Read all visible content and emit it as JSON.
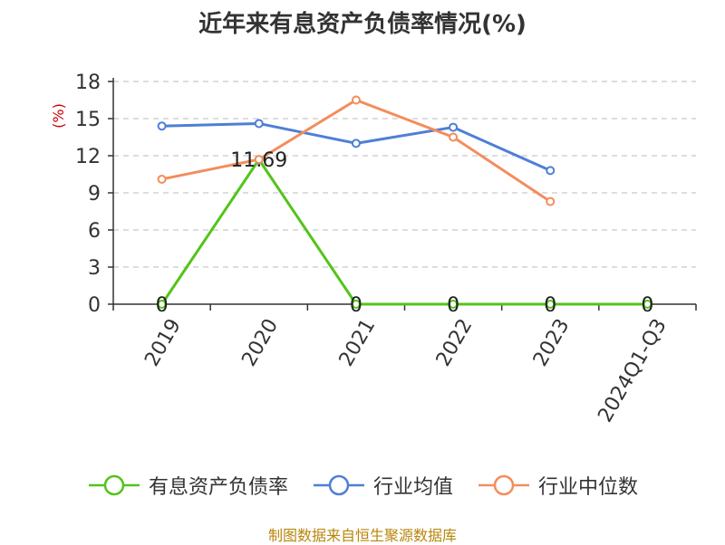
{
  "title": "近年来有息资产负债率情况(%)",
  "source": "制图数据来自恒生聚源数据库",
  "chart_data": {
    "type": "line",
    "title": "近年来有息资产负债率情况(%)",
    "ylabel": "(%)",
    "ylim": [
      0,
      18
    ],
    "yticks": [
      0,
      3,
      6,
      9,
      12,
      15,
      18
    ],
    "grid": true,
    "legend_position": "bottom",
    "categories": [
      "2019",
      "2020",
      "2021",
      "2022",
      "2023",
      "2024Q1-Q3"
    ],
    "series": [
      {
        "name": "有息资产负债率",
        "color": "#52c41a",
        "values": [
          0,
          11.69,
          0,
          0,
          0,
          0
        ],
        "labels": [
          "0",
          "11.69",
          "0",
          "0",
          "0",
          "0"
        ]
      },
      {
        "name": "行业均值",
        "color": "#4e7fd6",
        "values": [
          14.4,
          14.6,
          13.0,
          14.3,
          10.8,
          null
        ]
      },
      {
        "name": "行业中位数",
        "color": "#f38d5b",
        "values": [
          10.1,
          11.7,
          16.5,
          13.5,
          8.3,
          null
        ]
      }
    ]
  }
}
